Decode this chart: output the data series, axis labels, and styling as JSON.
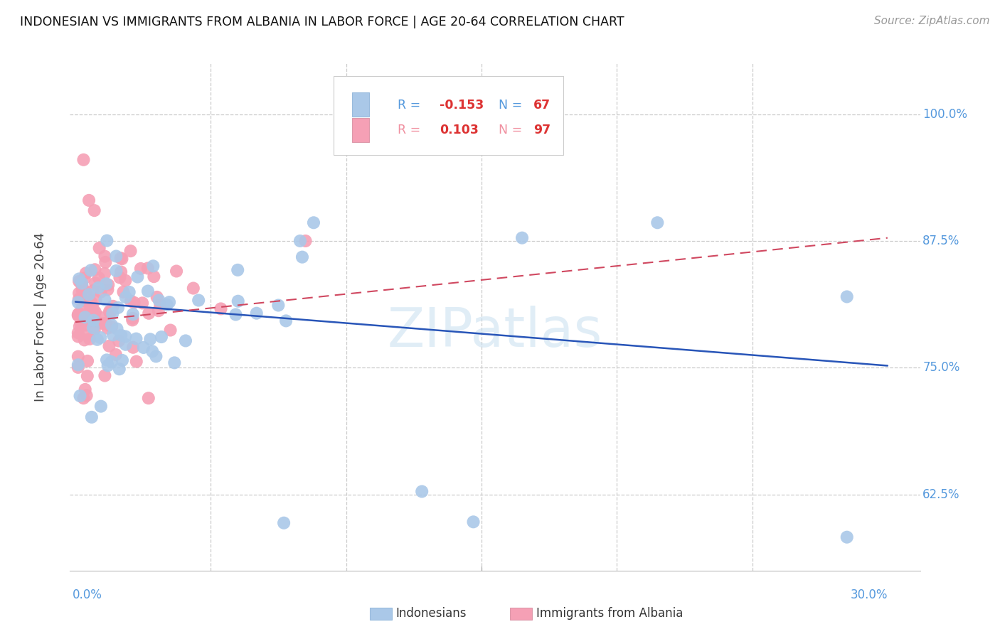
{
  "title": "INDONESIAN VS IMMIGRANTS FROM ALBANIA IN LABOR FORCE | AGE 20-64 CORRELATION CHART",
  "source": "Source: ZipAtlas.com",
  "ylabel": "In Labor Force | Age 20-64",
  "ytick_labels": [
    "100.0%",
    "87.5%",
    "75.0%",
    "62.5%"
  ],
  "ytick_values": [
    1.0,
    0.875,
    0.75,
    0.625
  ],
  "xlim": [
    0.0,
    0.3
  ],
  "ylim": [
    0.55,
    1.05
  ],
  "legend_r_blue": "-0.153",
  "legend_n_blue": "67",
  "legend_r_pink": "0.103",
  "legend_n_pink": "97",
  "watermark": "ZIPatlas",
  "blue_color": "#aac8e8",
  "pink_color": "#f5a0b5",
  "line_blue": "#2855b8",
  "line_pink": "#d04860",
  "grid_color": "#cccccc",
  "tick_color": "#5599dd",
  "title_color": "#111111",
  "source_color": "#999999",
  "ylabel_color": "#444444",
  "legend_text_blue": "#5599dd",
  "legend_text_pink": "#f090a0",
  "legend_val_color": "#dd3333",
  "bottom_label_color": "#333333"
}
